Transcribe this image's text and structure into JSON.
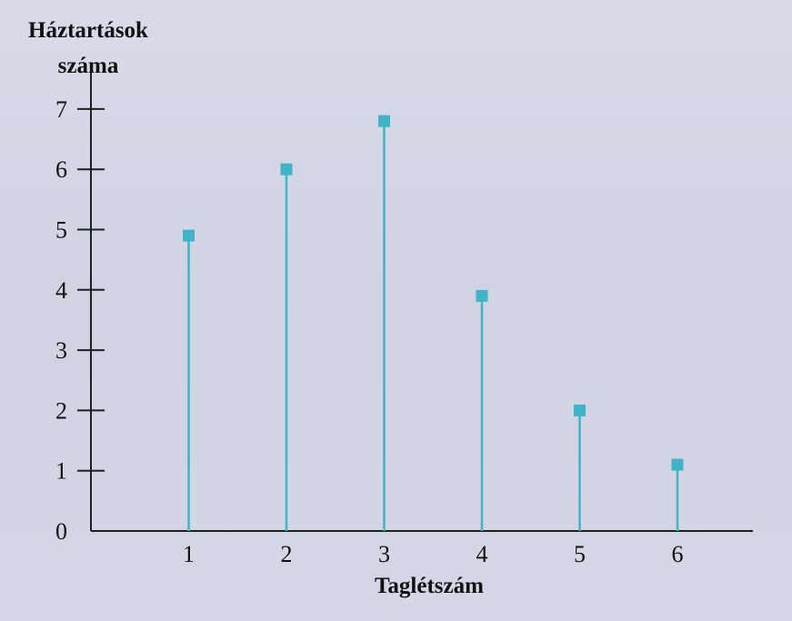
{
  "chart_data": {
    "type": "scatter",
    "style": "stem",
    "x": [
      1,
      2,
      3,
      4,
      5,
      6
    ],
    "values": [
      4.9,
      6.0,
      6.8,
      3.9,
      2.0,
      1.1
    ],
    "xlabel": "Taglétszám",
    "ylabel_lines": [
      "Háztartások",
      "száma"
    ],
    "y_ticks": [
      "0",
      "1",
      "2",
      "3",
      "4",
      "5",
      "6",
      "7"
    ],
    "x_ticks": [
      "1",
      "2",
      "3",
      "4",
      "5",
      "6"
    ],
    "xlim": [
      0,
      6.8
    ],
    "ylim": [
      0,
      7.8
    ],
    "grid": false,
    "legend": "none",
    "colors": {
      "series": "#3fb4c6",
      "axis": "#1f1f1f",
      "text": "#111111",
      "background": "#d2d6e4"
    }
  }
}
